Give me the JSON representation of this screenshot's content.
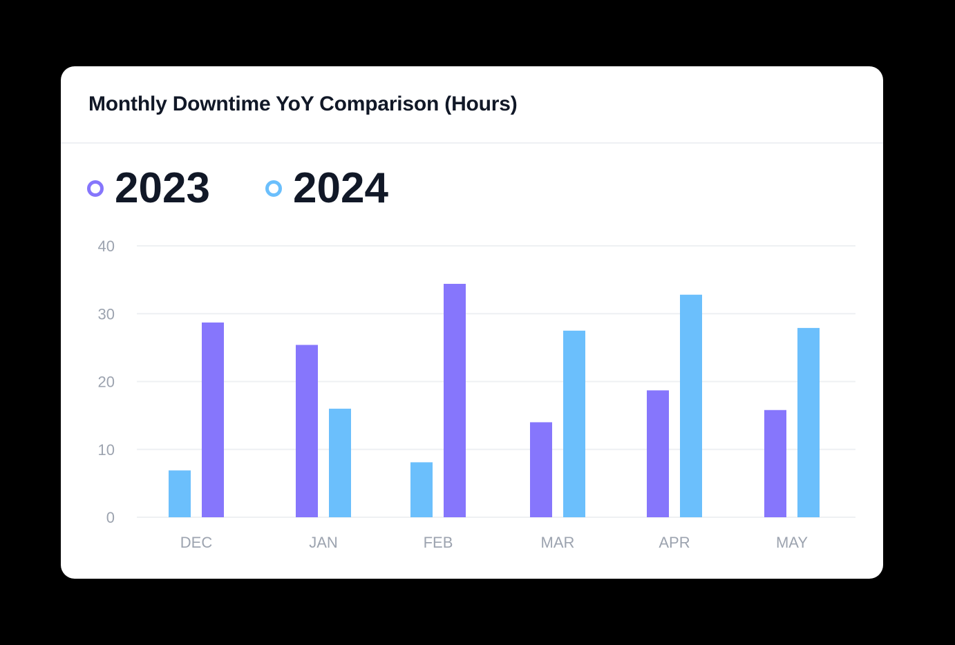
{
  "card": {
    "title": "Monthly Downtime YoY Comparison (Hours)"
  },
  "legend": [
    {
      "label": "2023",
      "color": "#8676fc"
    },
    {
      "label": "2024",
      "color": "#6bbffc"
    }
  ],
  "chart_data": {
    "type": "bar",
    "title": "Monthly Downtime YoY Comparison (Hours)",
    "categories": [
      "DEC",
      "JAN",
      "FEB",
      "MAR",
      "APR",
      "MAY"
    ],
    "series": [
      {
        "name": "2023",
        "color": "#8676fc",
        "values": [
          28.7,
          25.4,
          34.4,
          14.0,
          18.7,
          15.8
        ]
      },
      {
        "name": "2024",
        "color": "#6bbffc",
        "values": [
          6.9,
          16.0,
          8.1,
          27.5,
          32.8,
          27.9
        ]
      }
    ],
    "bar_order": [
      [
        "2024",
        "2023"
      ],
      [
        "2023",
        "2024"
      ],
      [
        "2024",
        "2023"
      ],
      [
        "2023",
        "2024"
      ],
      [
        "2023",
        "2024"
      ],
      [
        "2023",
        "2024"
      ]
    ],
    "yticks": [
      0,
      10,
      20,
      30,
      40
    ],
    "ylim": [
      0,
      40
    ],
    "grid": true,
    "legend_position": "top-left",
    "xlabel": "",
    "ylabel": ""
  }
}
